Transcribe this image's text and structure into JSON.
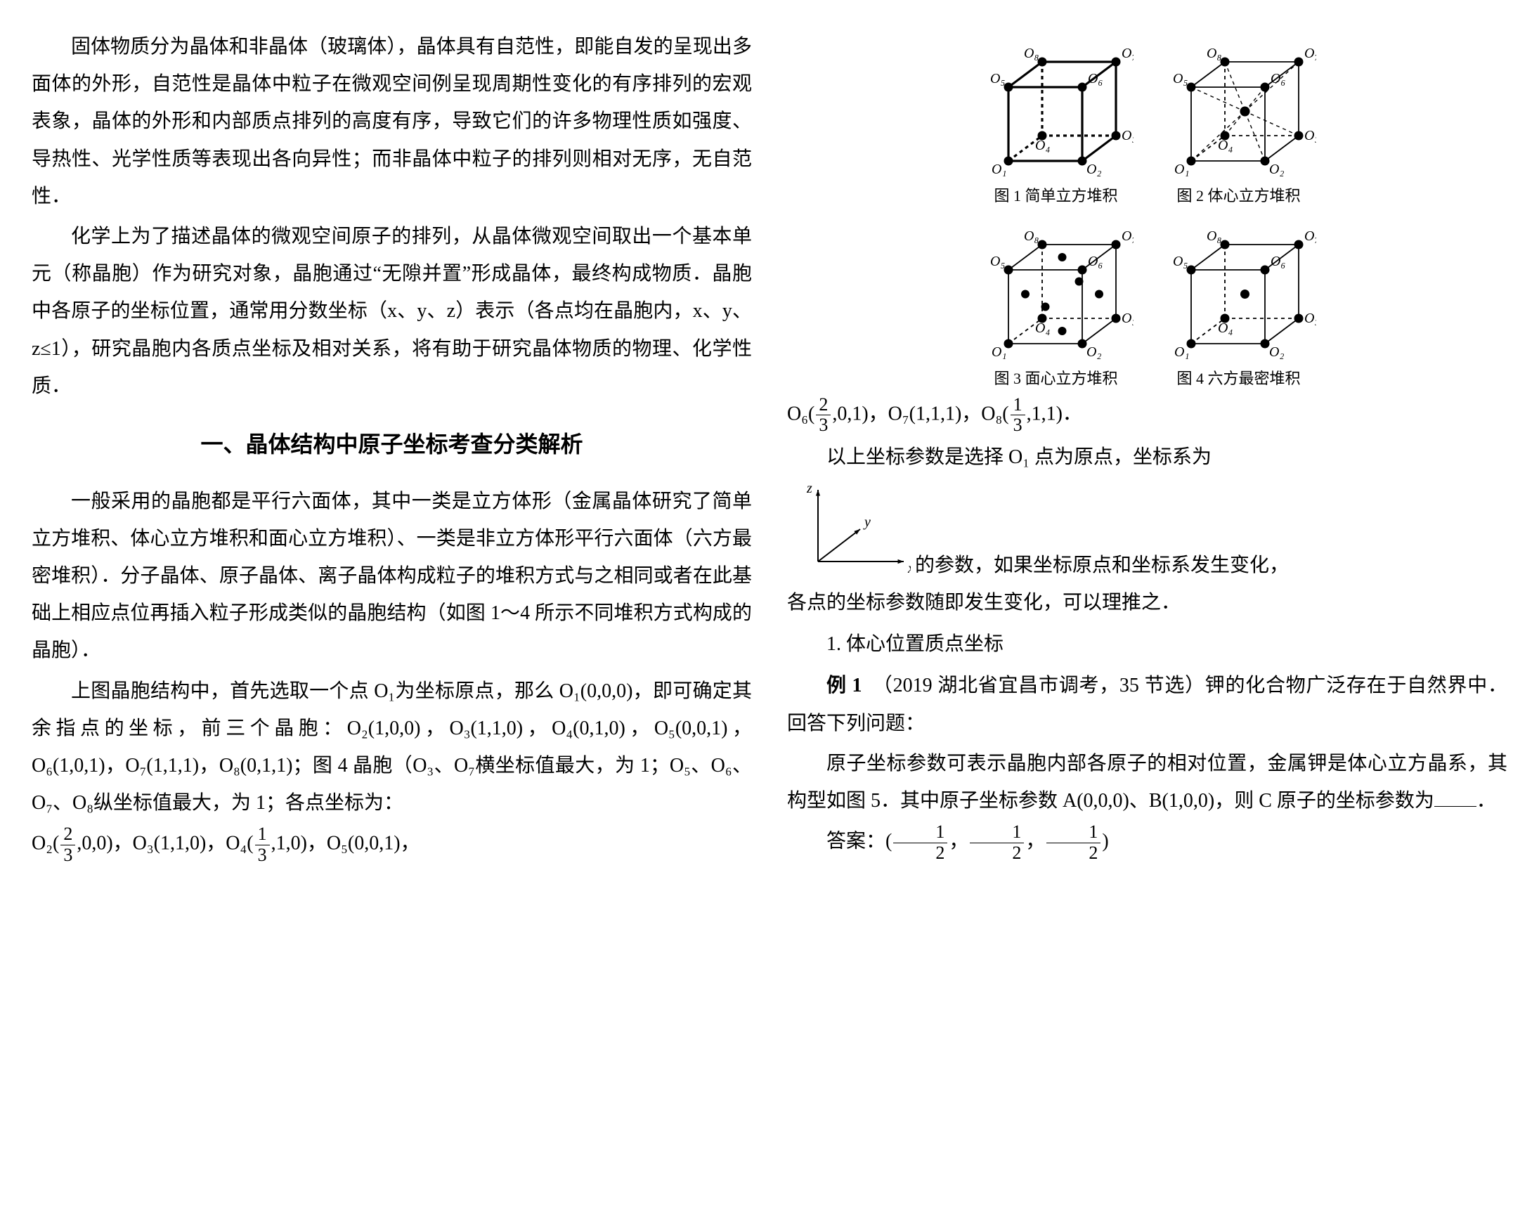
{
  "para1": "固体物质分为晶体和非晶体（玻璃体），晶体具有自范性，即能自发的呈现出多面体的外形，自范性是晶体中粒子在微观空间例呈现周期性变化的有序排列的宏观表象，晶体的外形和内部质点排列的高度有序，导致它们的许多物理性质如强度、导热性、光学性质等表现出各向异性；而非晶体中粒子的排列则相对无序，无自范性．",
  "para2": "化学上为了描述晶体的微观空间原子的排列，从晶体微观空间取出一个基本单元（称晶胞）作为研究对象，晶胞通过“无隙并置”形成晶体，最终构成物质．晶胞中各原子的坐标位置，通常用分数坐标（x、y、z）表示（各点均在晶胞内，x、y、z≤1），研究晶胞内各质点坐标及相对关系，将有助于研究晶体物质的物理、化学性质．",
  "sectionTitle": "一、晶体结构中原子坐标考查分类解析",
  "para3": "一般采用的晶胞都是平行六面体，其中一类是立方体形（金属晶体研究了简单立方堆积、体心立方堆积和面心立方堆积）、一类是非立方体形平行六面体（六方最密堆积）．分子晶体、原子晶体、离子晶体构成粒子的堆积方式与之相同或者在此基础上相应点位再插入粒子形成类似的晶胞结构（如图 1～4 所示不同堆积方式构成的晶胞）．",
  "para4a": "上图晶胞结构中，首先选取一个点 O₁为坐标原点，那么 O₁(0,0,0)，即可确定其余指点的坐标，前三个晶胞：O₂(1,0,0)，O₃(1,1,0)，O₄(0,1,0)，O₅(0,0,1)，O₆(1,0,1)，O₇(1,1,1)，O₈(0,1,1)；图 4 晶胞（O₃、O₇横坐标值最大，为 1；O₅、O₆、O₇、O₈纵坐标值最大，为 1；各点坐标为：",
  "para4b_pre": "O₂(",
  "para4b_mid1": ",0,0)，O₃(1,1,0)，O₄(",
  "para4b_mid2": ",1,0)，O₅(0,0,1)，",
  "fig1cap": "图 1  简单立方堆积",
  "fig2cap": "图 2  体心立方堆积",
  "fig3cap": "图 3  面心立方堆积",
  "fig4cap": "图 4  六方最密堆积",
  "o6_pre": "O₆(",
  "o6_mid": ",0,1)，O₇(1,1,1)，O₈(",
  "o6_end": ",1,1)．",
  "axes_intro": "以上坐标参数是选择 O₁ 点为原点，坐标系为",
  "axes_line_a": " 的参数，如果坐标原点和坐标系发生变化，",
  "axes_line_b": "各点的坐标参数随即发生变化，可以理推之．",
  "sub1": "1. 体心位置质点坐标",
  "ex1_label": "例 1",
  "ex1_body": "（2019 湖北省宜昌市调考，35 节选）钾的化合物广泛存在于自然界中．回答下列问题：",
  "ex1_q": "原子坐标参数可表示晶胞内部各原子的相对位置，金属钾是体心立方晶系，其构型如图 5．其中原子坐标参数 A(0,0,0)、B(1,0,0)，则 C 原子的坐标参数为",
  "ex1_q_end": "．",
  "ans_label": "答案：(",
  "ans_sep": "，",
  "ans_end": ")",
  "frac": {
    "n23": "2",
    "d23": "3",
    "n13": "1",
    "d13": "3",
    "n12": "1",
    "d12": "2"
  },
  "axis_labels": {
    "x": "x",
    "y": "y",
    "z": "z"
  },
  "vertex_labels": [
    "O₁",
    "O₂",
    "O₃",
    "O₄",
    "O₅",
    "O₆",
    "O₇",
    "O₈"
  ],
  "colors": {
    "text": "#000000",
    "bg": "#ffffff",
    "stroke": "#000000",
    "fill": "#000000"
  },
  "stroke": {
    "thick": 3.2,
    "thin": 1.8,
    "dash": "5,5"
  },
  "vertex_r": 6.5,
  "fig_label_font": 20
}
